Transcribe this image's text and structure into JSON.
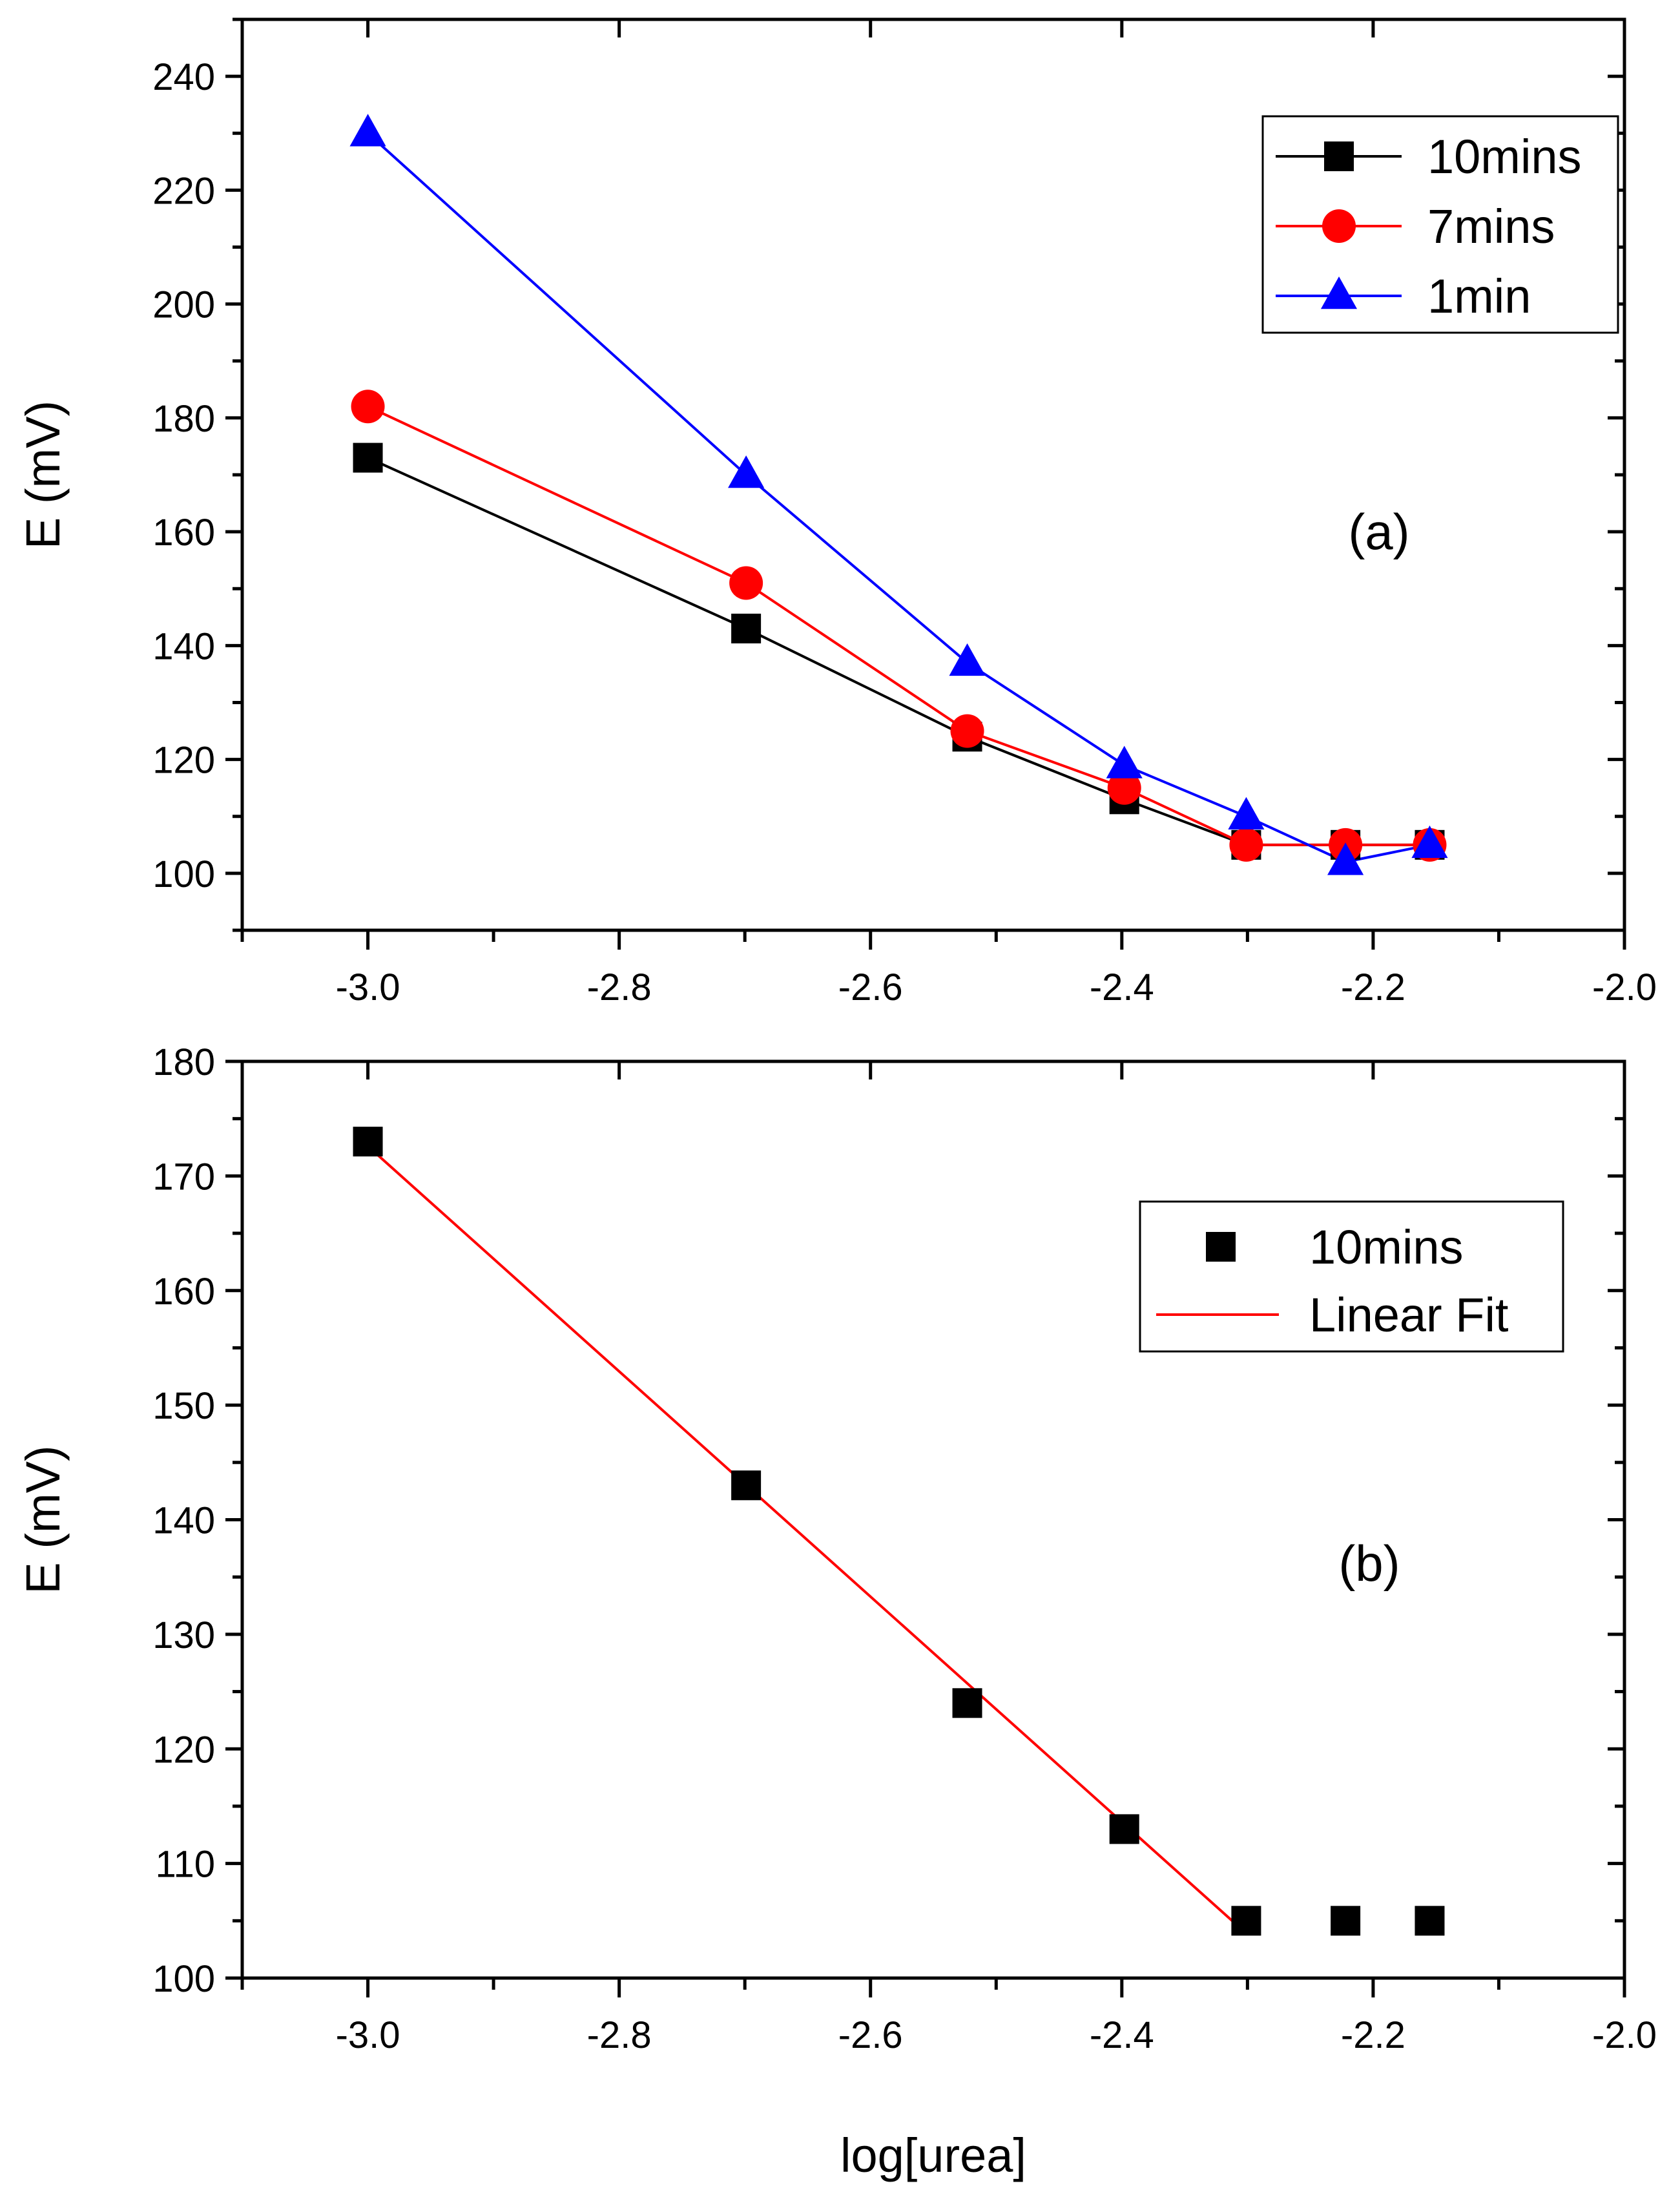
{
  "chart_data": [
    {
      "type": "line",
      "panel": "a",
      "annotation": "(a)",
      "xlabel": "",
      "ylabel": "E (mV)",
      "xlim": [
        -3.1,
        -2.0
      ],
      "ylim": [
        90,
        250
      ],
      "xticks": [
        "-3.0",
        "-2.8",
        "-2.6",
        "-2.4",
        "-2.2",
        "-2.0"
      ],
      "xtick_values": [
        -3.0,
        -2.8,
        -2.6,
        -2.4,
        -2.2,
        -2.0
      ],
      "yticks": [
        "100",
        "120",
        "140",
        "160",
        "180",
        "200",
        "220",
        "240"
      ],
      "ytick_values": [
        100,
        120,
        140,
        160,
        180,
        200,
        220,
        240
      ],
      "legend_position": "top-right",
      "x": [
        -3.0,
        -2.699,
        -2.523,
        -2.398,
        -2.301,
        -2.222,
        -2.155
      ],
      "series": [
        {
          "name": "10mins",
          "color": "#000000",
          "marker": "square",
          "values": [
            173,
            143,
            124,
            113,
            105,
            105,
            105
          ]
        },
        {
          "name": "7mins",
          "color": "#ff0000",
          "marker": "circle",
          "values": [
            182,
            151,
            125,
            115,
            105,
            105,
            105
          ]
        },
        {
          "name": "1min",
          "color": "#0000ff",
          "marker": "triangle",
          "values": [
            230,
            170,
            137,
            119,
            110,
            102,
            105
          ]
        }
      ]
    },
    {
      "type": "scatter",
      "panel": "b",
      "annotation": "(b)",
      "xlabel": "log[urea]",
      "ylabel": "E (mV)",
      "xlim": [
        -3.1,
        -2.0
      ],
      "ylim": [
        100,
        180
      ],
      "xticks": [
        "-3.0",
        "-2.8",
        "-2.6",
        "-2.4",
        "-2.2",
        "-2.0"
      ],
      "xtick_values": [
        -3.0,
        -2.8,
        -2.6,
        -2.4,
        -2.2,
        -2.0
      ],
      "yticks": [
        "100",
        "110",
        "120",
        "130",
        "140",
        "150",
        "160",
        "170",
        "180"
      ],
      "ytick_values": [
        100,
        110,
        120,
        130,
        140,
        150,
        160,
        170,
        180
      ],
      "legend_position": "right",
      "x": [
        -3.0,
        -2.699,
        -2.523,
        -2.398,
        -2.301,
        -2.222,
        -2.155
      ],
      "series": [
        {
          "name": "10mins",
          "color": "#000000",
          "marker": "square",
          "values": [
            173,
            143,
            124,
            113,
            105,
            105,
            105
          ]
        }
      ],
      "fit": {
        "name": "Linear Fit",
        "color": "#ff0000",
        "x": [
          -3.0,
          -2.301
        ],
        "values": [
          172.6,
          103.9
        ]
      }
    }
  ]
}
